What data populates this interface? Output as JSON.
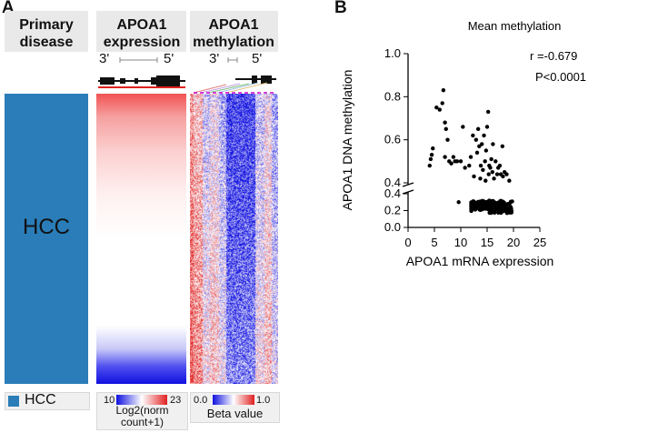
{
  "panel_a": {
    "letter": "A",
    "col1": {
      "line1": "Primary",
      "line2": "disease"
    },
    "col2": {
      "line1": "APOA1",
      "line2": "expression",
      "prime_left": "3'",
      "prime_right": "5'"
    },
    "col3": {
      "line1": "APOA1",
      "line2": "methylation",
      "prime_left": "3'",
      "prime_right": "5'"
    },
    "hcc_label": "HCC",
    "legend": {
      "hcc": "HCC",
      "expr_min": "10",
      "expr_max": "23",
      "expr_title_1": "Log2(norm",
      "expr_title_2": "count+1)",
      "beta_min": "0.0",
      "beta_max": "1.0",
      "beta_title": "Beta value"
    },
    "colors": {
      "hcc": "#2a7db8",
      "low": "#1010e0",
      "high": "#e02020"
    }
  },
  "panel_b": {
    "letter": "B"
  },
  "chart_data": {
    "type": "scatter",
    "title": "Mean methylation",
    "xlabel": "APOA1 mRNA expression",
    "ylabel": "APOA1 DNA methylation",
    "xlim": [
      0,
      25
    ],
    "x_ticks": [
      "0",
      "5",
      "10",
      "15",
      "20",
      "25"
    ],
    "y_ticks_upper": [
      "0.4",
      "0.6",
      "0.8",
      "1.0"
    ],
    "y_ticks_lower": [
      "0.0",
      "0.2",
      "0.4"
    ],
    "axis_break": true,
    "annotation_r": "r =-0.679",
    "annotation_p": "P<0.0001",
    "points": [
      [
        4.1,
        0.48
      ],
      [
        4.3,
        0.51
      ],
      [
        4.5,
        0.53
      ],
      [
        4.7,
        0.56
      ],
      [
        5.4,
        0.75
      ],
      [
        6.0,
        0.74
      ],
      [
        6.5,
        0.77
      ],
      [
        6.7,
        0.83
      ],
      [
        7.0,
        0.68
      ],
      [
        7.2,
        0.65
      ],
      [
        7.5,
        0.6
      ],
      [
        7.0,
        0.52
      ],
      [
        7.8,
        0.5
      ],
      [
        8.2,
        0.49
      ],
      [
        8.6,
        0.52
      ],
      [
        8.9,
        0.5
      ],
      [
        9.3,
        0.5
      ],
      [
        10.0,
        0.5
      ],
      [
        10.4,
        0.66
      ],
      [
        10.8,
        0.47
      ],
      [
        11.6,
        0.48
      ],
      [
        11.9,
        0.52
      ],
      [
        12.3,
        0.62
      ],
      [
        12.5,
        0.43
      ],
      [
        12.9,
        0.6
      ],
      [
        13.1,
        0.54
      ],
      [
        13.3,
        0.65
      ],
      [
        13.5,
        0.57
      ],
      [
        13.8,
        0.48
      ],
      [
        14.0,
        0.58
      ],
      [
        14.2,
        0.46
      ],
      [
        14.4,
        0.62
      ],
      [
        14.6,
        0.5
      ],
      [
        14.8,
        0.55
      ],
      [
        15.0,
        0.66
      ],
      [
        15.2,
        0.73
      ],
      [
        15.4,
        0.48
      ],
      [
        15.6,
        0.47
      ],
      [
        15.8,
        0.51
      ],
      [
        16.1,
        0.58
      ],
      [
        16.3,
        0.42
      ],
      [
        16.6,
        0.5
      ],
      [
        16.9,
        0.44
      ],
      [
        17.1,
        0.47
      ],
      [
        17.4,
        0.48
      ],
      [
        17.6,
        0.44
      ],
      [
        17.9,
        0.57
      ],
      [
        18.3,
        0.45
      ],
      [
        18.7,
        0.44
      ],
      [
        19.2,
        0.41
      ],
      [
        15.3,
        0.44
      ],
      [
        14.7,
        0.41
      ],
      [
        16.0,
        0.45
      ],
      [
        13.7,
        0.42
      ],
      [
        18.0,
        0.43
      ],
      [
        9.6,
        0.3
      ]
    ]
  }
}
